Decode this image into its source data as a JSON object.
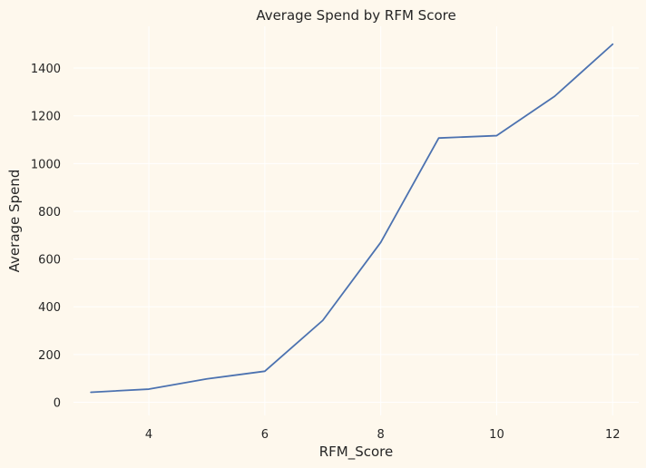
{
  "chart_data": {
    "type": "line",
    "title": "Average Spend by RFM Score",
    "xlabel": "RFM_Score",
    "ylabel": "Average Spend",
    "x": [
      3,
      4,
      5,
      6,
      7,
      8,
      9,
      10,
      11,
      12
    ],
    "series": [
      {
        "values": [
          42,
          55,
          98,
          130,
          343,
          670,
          1107,
          1117,
          1282,
          1500
        ],
        "color": "#4c72b0"
      }
    ],
    "xlim": [
      2.7,
      12.45
    ],
    "ylim": [
      -55,
      1575
    ],
    "xticks": [
      4,
      6,
      8,
      10,
      12
    ],
    "yticks": [
      0,
      200,
      400,
      600,
      800,
      1000,
      1200,
      1400
    ],
    "grid": true,
    "background_color": "#fef8ed",
    "plot_background_color": "#fef8ed",
    "grid_color": "#ffffff"
  }
}
